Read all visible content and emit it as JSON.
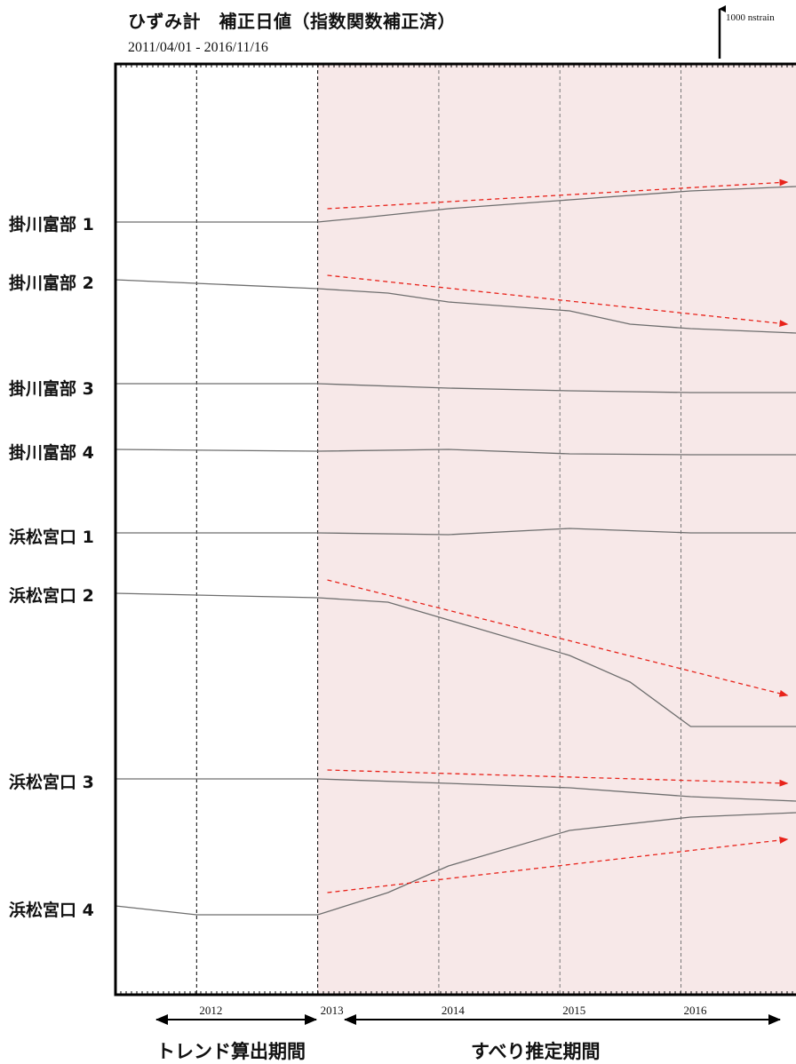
{
  "header": {
    "title": "ひずみ計　補正日値（指数関数補正済）",
    "date_range": "2011/04/01 - 2016/11/16",
    "scale_bar_label": "1000 nstrain"
  },
  "periods": {
    "trend_label": "トレンド算出期間",
    "slip_label": "すべり推定期間"
  },
  "colors": {
    "trace": "#6e6e6e",
    "trend_arrow": "#e8231b",
    "slip_shade": "#f7e8e8",
    "frame": "#000000"
  },
  "chart_data": {
    "type": "line",
    "title": "ひずみ計　補正日値（指数関数補正済）",
    "xlabel": "",
    "ylabel": "",
    "x_ticks": [
      "2012",
      "2013",
      "2014",
      "2015",
      "2016"
    ],
    "xlim": [
      2011.25,
      2016.87
    ],
    "grid": "vertical dashed lines at yearly ticks",
    "trend_period": [
      2011.92,
      2012.92
    ],
    "slip_period": [
      2012.92,
      2016.87
    ],
    "series": [
      {
        "name": "掛川富部 1",
        "x": [
          2011.25,
          2012.92,
          2013.3,
          2014.0,
          2015.0,
          2016.0,
          2016.87
        ],
        "y": [
          0,
          0,
          50,
          150,
          250,
          350,
          400
        ],
        "trend": {
          "x": [
            2013.0,
            2016.8
          ],
          "y": [
            150,
            450
          ]
        }
      },
      {
        "name": "掛川富部 2",
        "x": [
          2011.25,
          2012.92,
          2013.5,
          2014.0,
          2015.0,
          2015.5,
          2016.0,
          2016.87
        ],
        "y": [
          0,
          -100,
          -150,
          -250,
          -350,
          -500,
          -550,
          -600
        ],
        "trend": {
          "x": [
            2013.0,
            2016.8
          ],
          "y": [
            50,
            -500
          ]
        }
      },
      {
        "name": "掛川富部 3",
        "x": [
          2011.25,
          2012.92,
          2014.0,
          2015.0,
          2016.0,
          2016.87
        ],
        "y": [
          0,
          0,
          -50,
          -80,
          -100,
          -100
        ],
        "trend": null
      },
      {
        "name": "掛川富部 4",
        "x": [
          2011.25,
          2012.92,
          2014.0,
          2015.0,
          2016.0,
          2016.87
        ],
        "y": [
          0,
          -20,
          0,
          -50,
          -60,
          -60
        ],
        "trend": null
      },
      {
        "name": "浜松宮口 1",
        "x": [
          2011.25,
          2012.92,
          2014.0,
          2015.0,
          2016.0,
          2016.87
        ],
        "y": [
          0,
          0,
          -20,
          50,
          0,
          0
        ],
        "trend": null
      },
      {
        "name": "浜松宮口 2",
        "x": [
          2011.25,
          2012.92,
          2013.5,
          2014.0,
          2015.0,
          2015.5,
          2016.0,
          2016.87
        ],
        "y": [
          0,
          -50,
          -100,
          -300,
          -700,
          -1000,
          -1500,
          -1500
        ],
        "trend": {
          "x": [
            2013.0,
            2016.8
          ],
          "y": [
            150,
            -1150
          ]
        }
      },
      {
        "name": "浜松宮口 3",
        "x": [
          2011.25,
          2012.92,
          2014.0,
          2015.0,
          2016.0,
          2016.87
        ],
        "y": [
          0,
          0,
          -50,
          -100,
          -200,
          -250
        ],
        "trend": {
          "x": [
            2013.0,
            2016.8
          ],
          "y": [
            100,
            -50
          ]
        }
      },
      {
        "name": "浜松宮口 4",
        "x": [
          2011.25,
          2011.92,
          2012.92,
          2013.5,
          2014.0,
          2015.0,
          2016.0,
          2016.87
        ],
        "y": [
          0,
          -100,
          -100,
          150,
          450,
          850,
          1000,
          1050
        ],
        "trend": {
          "x": [
            2013.0,
            2016.8
          ],
          "y": [
            150,
            750
          ]
        }
      }
    ]
  }
}
